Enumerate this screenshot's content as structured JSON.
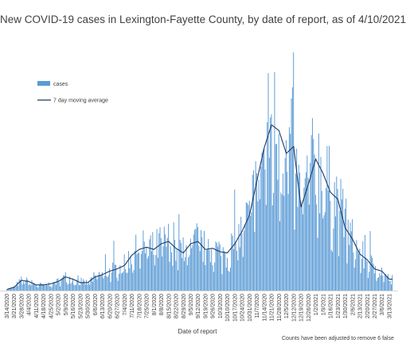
{
  "chart_data": {
    "type": "bar",
    "title": "New COVID-19 cases in Lexington-Fayette County, by date of report, as of 4/10/2021",
    "xlabel": "Date of report",
    "ylabel": "",
    "ylim": [
      0,
      400
    ],
    "grid": false,
    "legend_position": "top-left",
    "note": "Counts have been adjusted to remove 6 false",
    "tick_labels": [
      "3/14/2020",
      "3/21/2020",
      "3/28/2020",
      "4/4/2020",
      "4/11/2020",
      "4/18/2020",
      "4/25/2020",
      "5/2/2020",
      "5/9/2020",
      "5/16/2020",
      "5/23/2020",
      "5/30/2020",
      "6/6/2020",
      "6/13/2020",
      "6/20/2020",
      "6/27/2020",
      "7/4/2020",
      "7/11/2020",
      "7/18/2020",
      "7/25/2020",
      "8/1/2020",
      "8/8/2020",
      "8/15/2020",
      "8/22/2020",
      "8/29/2020",
      "9/5/2020",
      "9/12/2020",
      "9/19/2020",
      "9/26/2020",
      "10/3/2020",
      "10/10/2020",
      "10/17/2020",
      "10/24/2020",
      "10/31/2020",
      "11/7/2020",
      "11/14/2020",
      "11/21/2020",
      "11/28/2020",
      "12/5/2020",
      "12/12/2020",
      "12/19/2020",
      "12/26/2020",
      "1/2/2021",
      "1/9/2021",
      "1/16/2021",
      "1/23/2021",
      "1/30/2021",
      "2/6/2021",
      "2/13/2021",
      "2/20/2021",
      "2/27/2021",
      "3/6/2021",
      "3/13/2021"
    ],
    "x_start": "3/14/2020",
    "weekly_avg": [
      2,
      6,
      18,
      16,
      10,
      10,
      12,
      16,
      24,
      20,
      14,
      14,
      24,
      28,
      34,
      38,
      44,
      62,
      72,
      76,
      72,
      82,
      86,
      74,
      66,
      82,
      86,
      72,
      74,
      68,
      66,
      82,
      104,
      132,
      192,
      250,
      290,
      280,
      240,
      252,
      146,
      186,
      230,
      205,
      172,
      160,
      110,
      90,
      64,
      54,
      38,
      34,
      20
    ],
    "series": [
      {
        "name": "cases",
        "color": "#5b9bd5"
      },
      {
        "name": "7 day moving average",
        "color": "#1f3864"
      }
    ]
  }
}
